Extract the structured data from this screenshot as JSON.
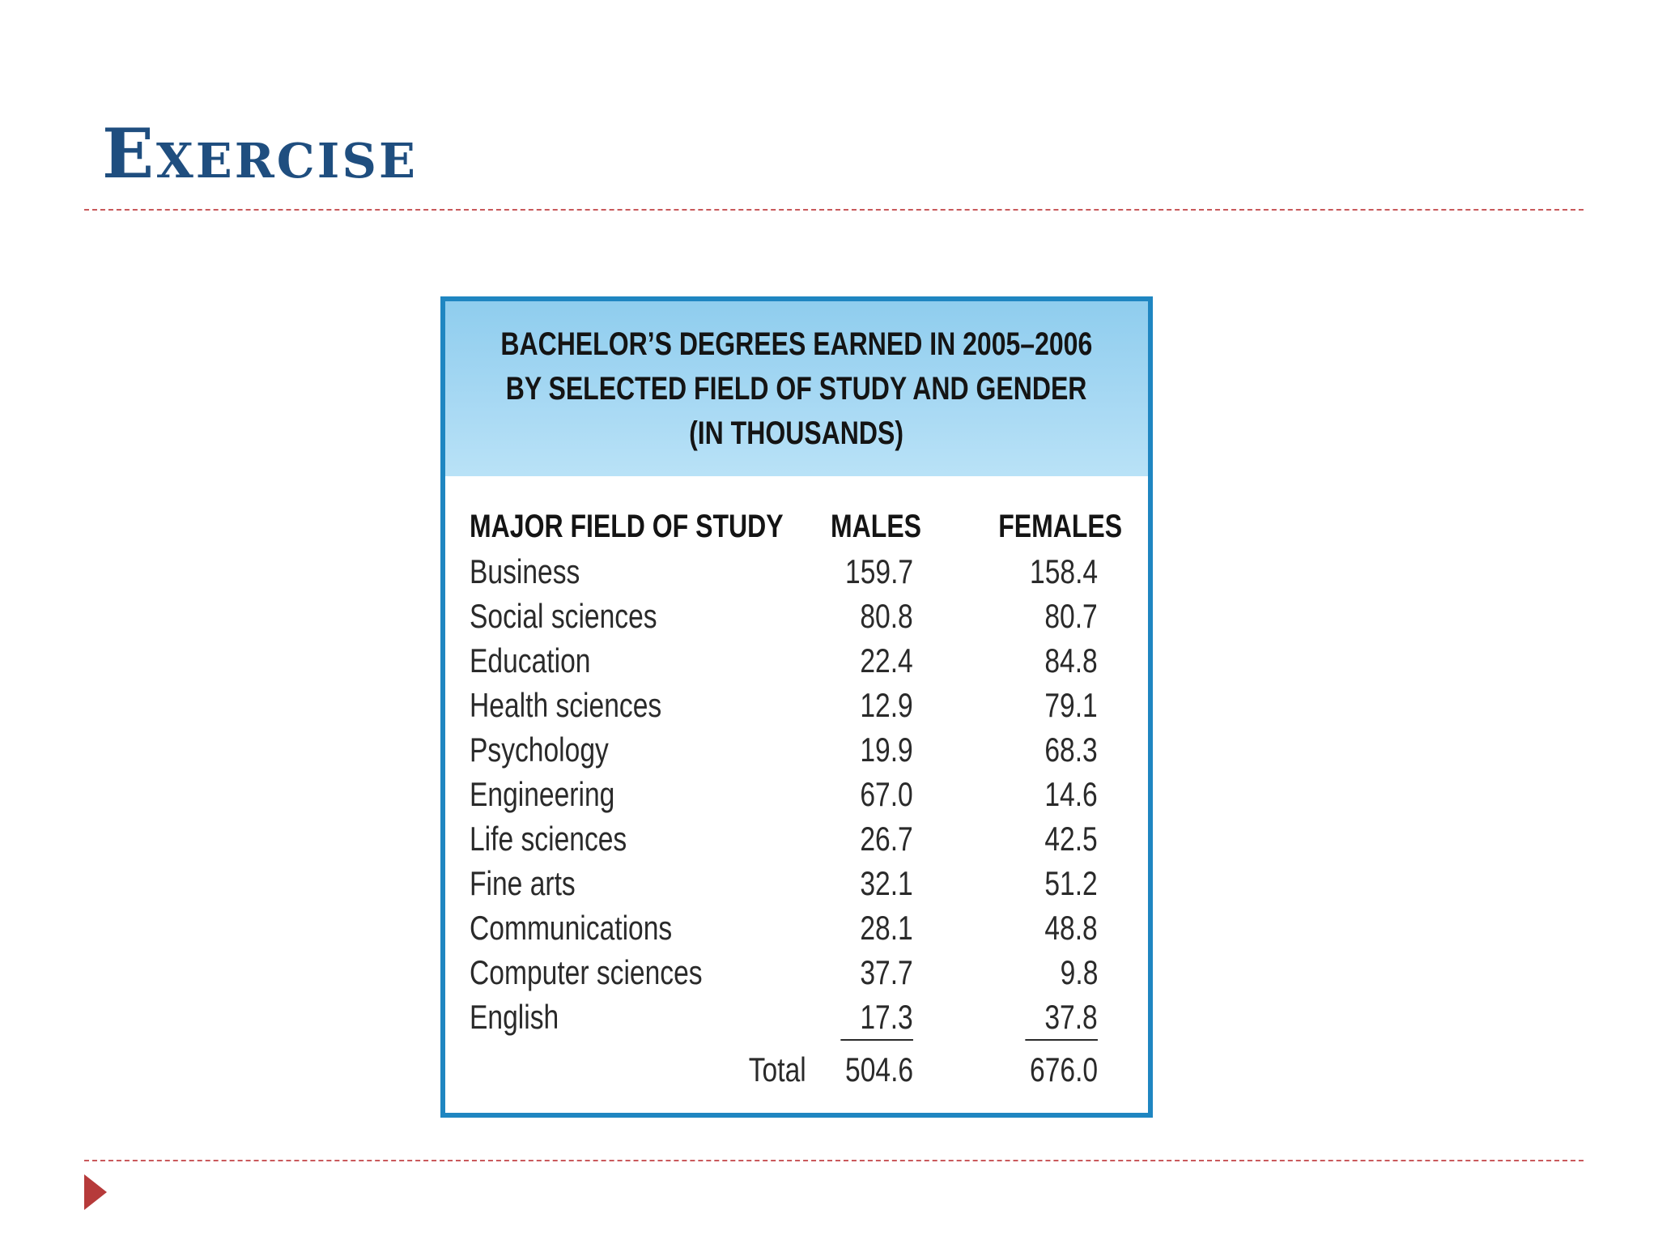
{
  "slide": {
    "title": "Exercise"
  },
  "table": {
    "title_lines": [
      "BACHELOR’S DEGREES EARNED IN 2005–2006",
      "BY SELECTED FIELD OF STUDY AND GENDER",
      "(IN THOUSANDS)"
    ],
    "columns": [
      "MAJOR FIELD OF STUDY",
      "MALES",
      "FEMALES"
    ],
    "rows": [
      {
        "field": "Business",
        "males": "159.7",
        "females": "158.4"
      },
      {
        "field": "Social sciences",
        "males": "80.8",
        "females": "80.7"
      },
      {
        "field": "Education",
        "males": "22.4",
        "females": "84.8"
      },
      {
        "field": "Health sciences",
        "males": "12.9",
        "females": "79.1"
      },
      {
        "field": "Psychology",
        "males": "19.9",
        "females": "68.3"
      },
      {
        "field": "Engineering",
        "males": "67.0",
        "females": "14.6"
      },
      {
        "field": "Life sciences",
        "males": "26.7",
        "females": "42.5"
      },
      {
        "field": "Fine arts",
        "males": "32.1",
        "females": "51.2"
      },
      {
        "field": "Communications",
        "males": "28.1",
        "females": "48.8"
      },
      {
        "field": "Computer sciences",
        "males": "37.7",
        "females": "9.8"
      },
      {
        "field": "English",
        "males": "17.3",
        "females": "37.8"
      }
    ],
    "total": {
      "label": "Total",
      "males": "504.6",
      "females": "676.0"
    }
  },
  "colors": {
    "title": "#1f4e7f",
    "rule": "#c9595b",
    "bullet": "#b63a3a",
    "table_border": "#1f86c1",
    "table_header_bg": "#a6d8f3"
  },
  "icons": {
    "bullet": "triangle-right-icon"
  }
}
